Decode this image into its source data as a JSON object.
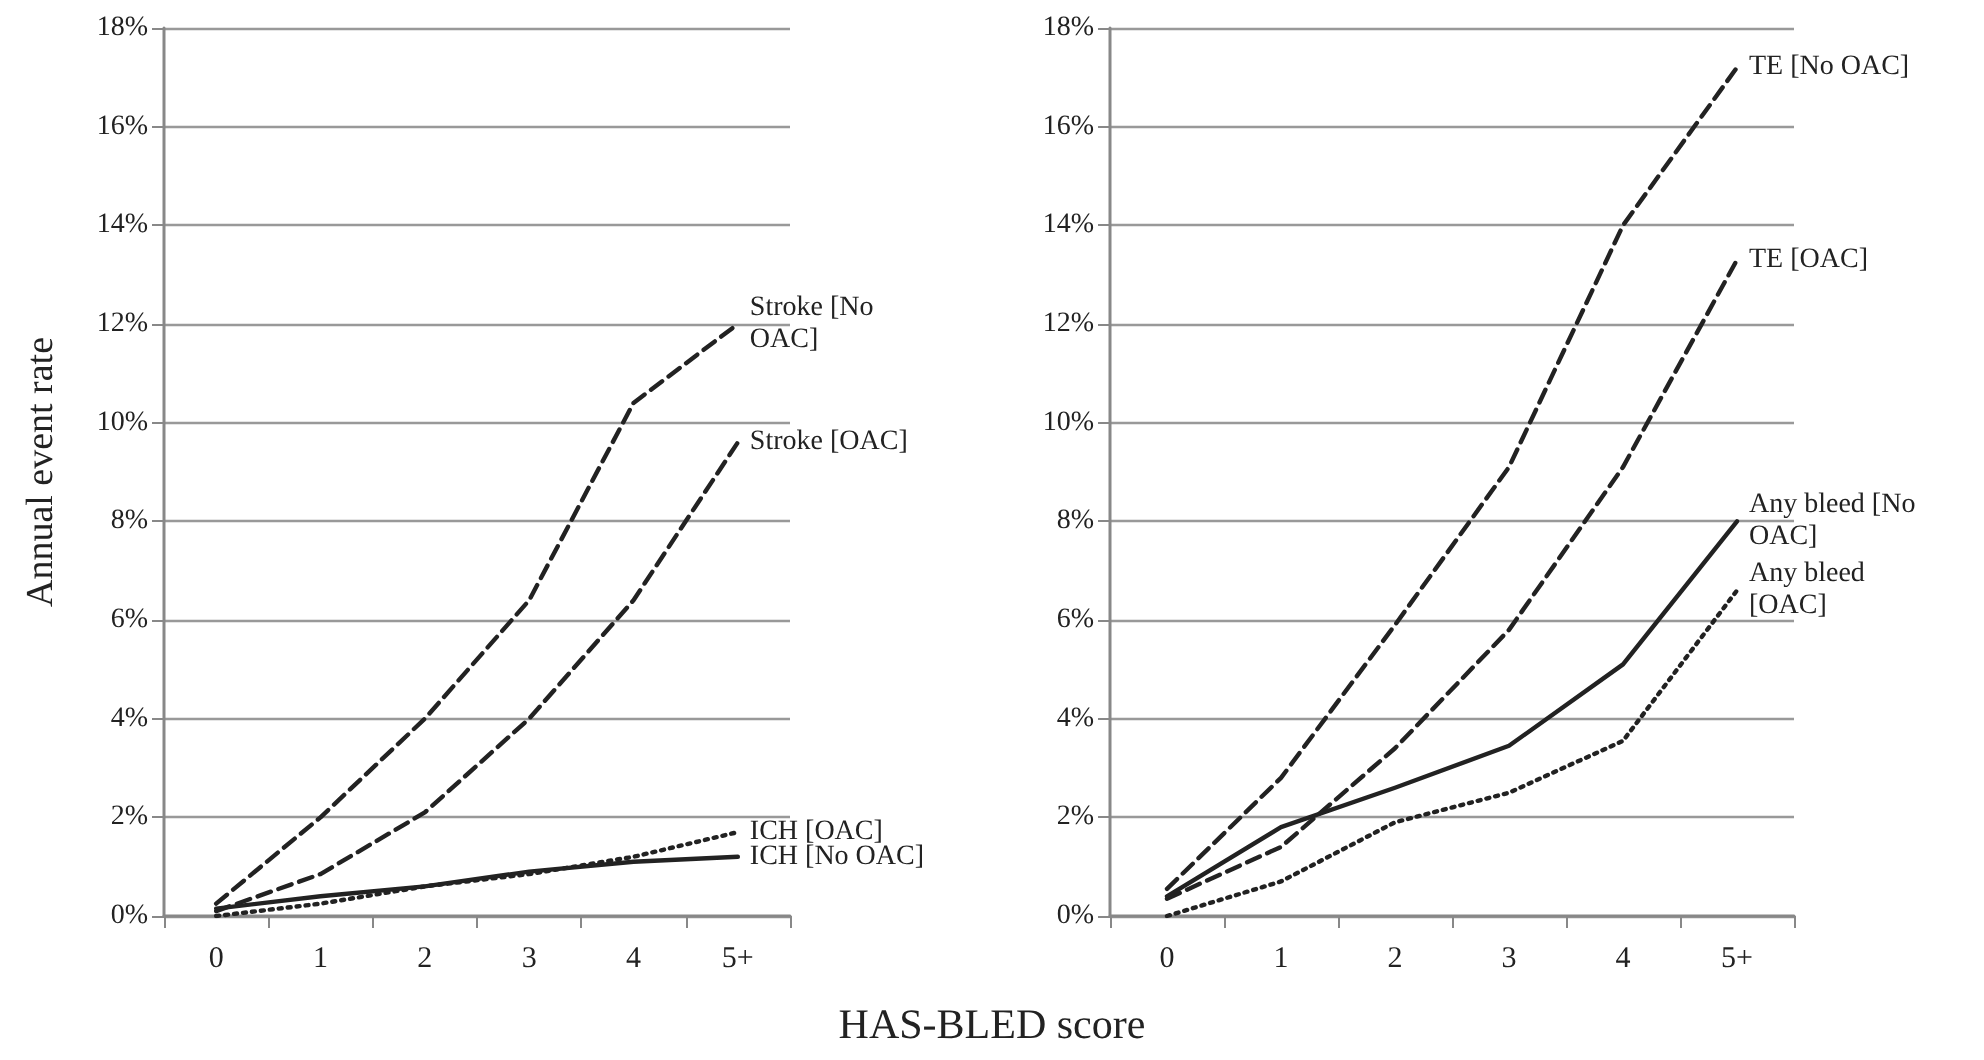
{
  "chart_data": [
    {
      "type": "line",
      "ylabel": "Annual event rate",
      "xlabel": "HAS-BLED score",
      "categories": [
        "0",
        "1",
        "2",
        "3",
        "4",
        "5+"
      ],
      "ylim": [
        0,
        18
      ],
      "yticks": [
        {
          "value": 0,
          "label": "0%"
        },
        {
          "value": 2,
          "label": "2%"
        },
        {
          "value": 4,
          "label": "4%"
        },
        {
          "value": 6,
          "label": "6%"
        },
        {
          "value": 8,
          "label": "8%"
        },
        {
          "value": 10,
          "label": "10%"
        },
        {
          "value": 12,
          "label": "12%"
        },
        {
          "value": 14,
          "label": "14%"
        },
        {
          "value": 16,
          "label": "16%"
        },
        {
          "value": 18,
          "label": "18%"
        }
      ],
      "grid": "y",
      "legend": false,
      "marker": "none",
      "series": [
        {
          "name": "Stroke [No OAC]",
          "color": "#222222",
          "line_style": "dashed",
          "values": [
            0.25,
            2.0,
            4.0,
            6.4,
            10.4,
            12.0
          ]
        },
        {
          "name": "Stroke [OAC]",
          "color": "#222222",
          "line_style": "dashed",
          "values": [
            0.1,
            0.85,
            2.1,
            4.0,
            6.4,
            9.6
          ]
        },
        {
          "name": "ICH [OAC]",
          "color": "#222222",
          "line_style": "dotted",
          "values": [
            0,
            0.25,
            0.6,
            0.85,
            1.2,
            1.7
          ]
        },
        {
          "name": "ICH [No OAC]",
          "color": "#222222",
          "line_style": "solid",
          "values": [
            0.15,
            0.4,
            0.6,
            0.9,
            1.1,
            1.2
          ]
        }
      ]
    },
    {
      "type": "line",
      "categories": [
        "0",
        "1",
        "2",
        "3",
        "4",
        "5+"
      ],
      "ylim": [
        0,
        18
      ],
      "yticks": [
        {
          "value": 0,
          "label": "0%"
        },
        {
          "value": 2,
          "label": "2%"
        },
        {
          "value": 4,
          "label": "4%"
        },
        {
          "value": 6,
          "label": "6%"
        },
        {
          "value": 8,
          "label": "8%"
        },
        {
          "value": 10,
          "label": "10%"
        },
        {
          "value": 12,
          "label": "12%"
        },
        {
          "value": 14,
          "label": "14%"
        },
        {
          "value": 16,
          "label": "16%"
        },
        {
          "value": 18,
          "label": "18%"
        }
      ],
      "grid": "y",
      "legend": false,
      "marker": "none",
      "series": [
        {
          "name": "TE [No OAC]",
          "color": "#222222",
          "line_style": "dashed",
          "values": [
            0.55,
            2.8,
            5.9,
            9.1,
            14.0,
            17.2
          ]
        },
        {
          "name": "TE [OAC]",
          "color": "#222222",
          "line_style": "dashed",
          "values": [
            0.35,
            1.4,
            3.4,
            5.8,
            9.1,
            13.3
          ]
        },
        {
          "name": "Any bleed [No OAC]",
          "color": "#222222",
          "line_style": "solid",
          "values": [
            0.4,
            1.8,
            2.6,
            3.45,
            5.1,
            8.0
          ]
        },
        {
          "name": "Any bleed [OAC]",
          "color": "#222222",
          "line_style": "dotted",
          "values": [
            0,
            0.7,
            1.9,
            2.5,
            3.55,
            6.6
          ]
        }
      ]
    }
  ]
}
